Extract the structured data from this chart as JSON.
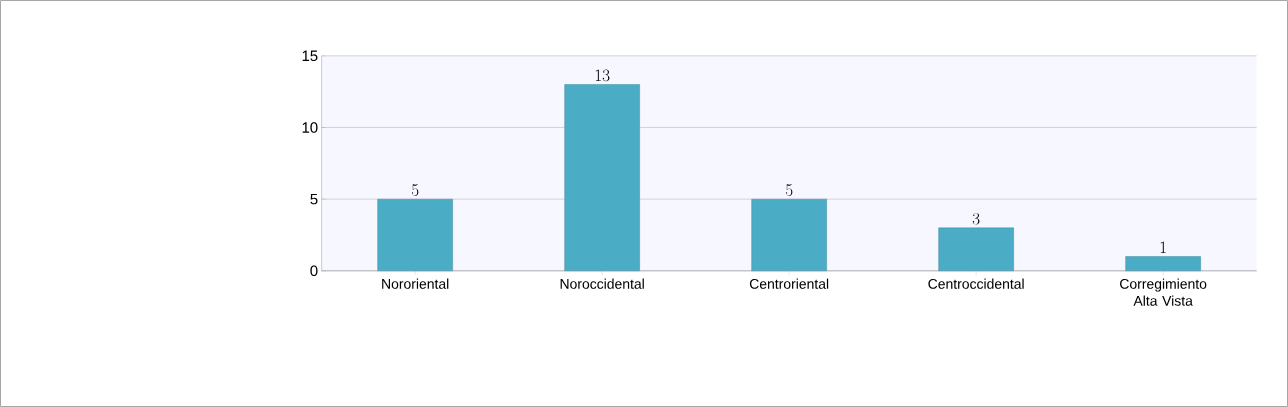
{
  "chart_data": {
    "type": "bar",
    "categories": [
      "Nororiental",
      "Noroccidental",
      "Centroriental",
      "Centroccidental",
      "Corregimiento Alta Vista"
    ],
    "values": [
      5,
      13,
      5,
      3,
      1
    ],
    "color": "#4bacc6",
    "ylim": [
      0,
      15
    ],
    "yticks": [
      0,
      5,
      10,
      15
    ],
    "grid": "y",
    "data_labels": true
  }
}
